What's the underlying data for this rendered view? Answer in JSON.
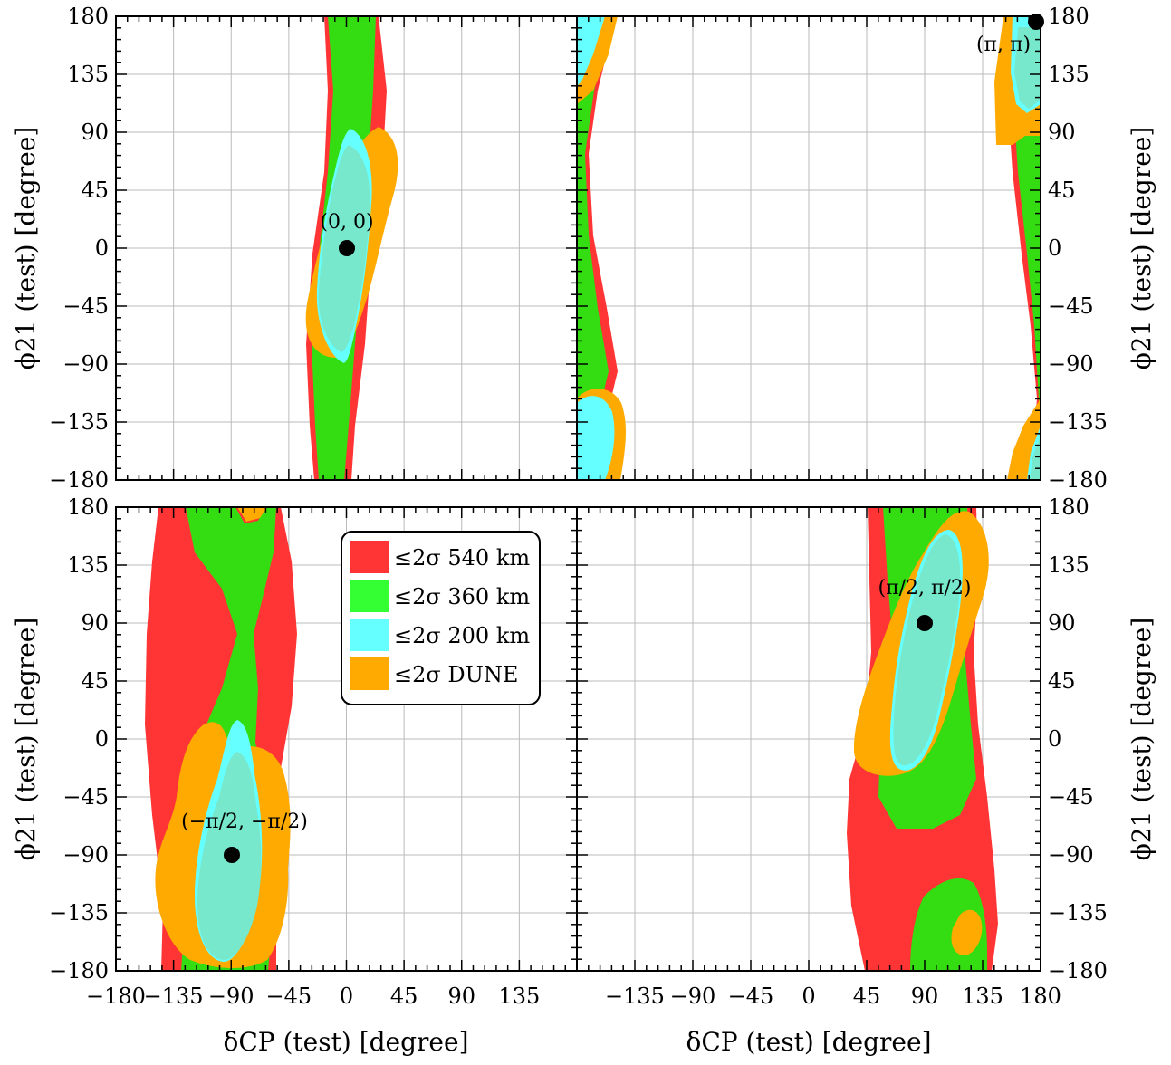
{
  "figure": {
    "x_axis_label": "δCP (test) [degree]",
    "y_axis_label": "ϕ21 (test) [degree]",
    "x_ticks_left": [
      "−180",
      "−135",
      "−90",
      "−45",
      "0",
      "45",
      "90",
      "135"
    ],
    "x_ticks_right": [
      "−135",
      "−90",
      "−45",
      "0",
      "45",
      "90",
      "135",
      "180"
    ],
    "y_ticks_left_top": [
      "180",
      "135",
      "90",
      "45",
      "0",
      "−45",
      "−90",
      "−135",
      "−180"
    ],
    "y_ticks_right_top": [
      "180",
      "135",
      "90",
      "45",
      "0",
      "−45",
      "−90",
      "−135",
      "−180"
    ],
    "y_ticks_left_bottom": [
      "180",
      "135",
      "90",
      "45",
      "0",
      "−45",
      "−90",
      "−135",
      "−180"
    ],
    "y_ticks_right_bottom": [
      "180",
      "135",
      "90",
      "45",
      "0",
      "−45",
      "−90",
      "−135",
      "−180"
    ]
  },
  "legend": [
    {
      "label": "≤2σ 540 km",
      "color": "#ff3535"
    },
    {
      "label": "≤2σ 360 km",
      "color": "#33dd11"
    },
    {
      "label": "≤2σ 200 km",
      "color": "#66ffff"
    },
    {
      "label": "≤2σ DUNE",
      "color": "#ffaa00"
    }
  ],
  "chart_data": [
    {
      "type": "contour",
      "panel": "top-left",
      "xlim": [
        -180,
        180
      ],
      "ylim": [
        -180,
        180
      ],
      "grid": true,
      "benchmark": {
        "label": "(0, 0)",
        "x": 0,
        "y": 0
      },
      "regions": {
        "540 km": [
          [
            -30,
            180
          ],
          [
            30,
            180
          ],
          [
            32,
            120
          ],
          [
            22,
            60
          ],
          [
            16,
            0
          ],
          [
            16,
            -60
          ],
          [
            8,
            -120
          ],
          [
            4,
            -180
          ],
          [
            -25,
            -180
          ],
          [
            -30,
            -120
          ],
          [
            -32,
            -60
          ],
          [
            -22,
            0
          ],
          [
            -18,
            60
          ],
          [
            -20,
            120
          ]
        ],
        "360 km": [
          [
            -26,
            180
          ],
          [
            26,
            180
          ],
          [
            24,
            120
          ],
          [
            18,
            60
          ],
          [
            12,
            0
          ],
          [
            10,
            -60
          ],
          [
            4,
            -120
          ],
          [
            0,
            -180
          ],
          [
            -22,
            -180
          ],
          [
            -24,
            -120
          ],
          [
            -26,
            -60
          ],
          [
            -20,
            0
          ],
          [
            -14,
            60
          ],
          [
            -14,
            120
          ]
        ],
        "DUNE": [
          [
            28,
            95
          ],
          [
            40,
            70
          ],
          [
            37,
            40
          ],
          [
            28,
            0
          ],
          [
            18,
            -45
          ],
          [
            5,
            -82
          ],
          [
            -15,
            -88
          ],
          [
            -32,
            -75
          ],
          [
            -34,
            -40
          ],
          [
            -24,
            0
          ],
          [
            -10,
            40
          ],
          [
            5,
            75
          ],
          [
            15,
            92
          ]
        ],
        "200 km": [
          [
            2,
            93
          ],
          [
            14,
            70
          ],
          [
            20,
            40
          ],
          [
            18,
            0
          ],
          [
            10,
            -45
          ],
          [
            -2,
            -90
          ],
          [
            -14,
            -75
          ],
          [
            -28,
            -40
          ],
          [
            -24,
            0
          ],
          [
            -14,
            40
          ],
          [
            -6,
            70
          ]
        ]
      }
    },
    {
      "type": "contour",
      "panel": "top-right",
      "xlim": [
        -180,
        180
      ],
      "ylim": [
        -180,
        180
      ],
      "grid": true,
      "benchmark": {
        "label": "(π, π)",
        "x": 180,
        "y": 180
      },
      "regions": {
        "540 km": [
          [
            -180,
            180
          ],
          [
            -155,
            180
          ],
          [
            -173,
            120
          ],
          [
            -170,
            60
          ],
          [
            -160,
            0
          ],
          [
            -150,
            -60
          ],
          [
            -145,
            -110
          ],
          [
            -160,
            -150
          ],
          [
            -180,
            -180
          ]
        ],
        "360 km": [
          [
            -180,
            180
          ],
          [
            -158,
            180
          ],
          [
            -175,
            120
          ],
          [
            -172,
            60
          ],
          [
            -163,
            0
          ],
          [
            -155,
            -60
          ],
          [
            -152,
            -110
          ],
          [
            -165,
            -150
          ],
          [
            -180,
            -170
          ]
        ],
        "DUNE": [
          [
            -180,
            180
          ],
          [
            -150,
            180
          ],
          [
            -162,
            120
          ],
          [
            -180,
            100
          ],
          [
            -180,
            -180
          ],
          [
            -157,
            -180
          ],
          [
            -145,
            -140
          ],
          [
            -152,
            -105
          ],
          [
            -172,
            -100
          ],
          [
            -180,
            -110
          ]
        ],
        "200 km": [
          [
            -180,
            180
          ],
          [
            -162,
            180
          ],
          [
            -175,
            130
          ],
          [
            -180,
            120
          ],
          [
            -180,
            -180
          ],
          [
            -165,
            -180
          ],
          [
            -155,
            -145
          ],
          [
            -160,
            -115
          ],
          [
            -180,
            -110
          ]
        ]
      },
      "regions_right_edge": {
        "540 km": [
          [
            180,
            180
          ],
          [
            155,
            180
          ],
          [
            150,
            120
          ],
          [
            155,
            60
          ],
          [
            160,
            0
          ],
          [
            165,
            -60
          ],
          [
            168,
            -120
          ],
          [
            175,
            -180
          ],
          [
            180,
            -180
          ]
        ],
        "DUNE": [
          [
            180,
            180
          ],
          [
            157,
            180
          ],
          [
            150,
            135
          ],
          [
            150,
            90
          ],
          [
            168,
            80
          ],
          [
            180,
            90
          ],
          [
            180,
            -180
          ],
          [
            158,
            -180
          ],
          [
            170,
            -140
          ],
          [
            180,
            -120
          ]
        ],
        "200 km": [
          [
            180,
            180
          ],
          [
            163,
            180
          ],
          [
            162,
            130
          ],
          [
            170,
            105
          ],
          [
            180,
            110
          ]
        ]
      }
    },
    {
      "type": "contour",
      "panel": "bottom-left",
      "xlim": [
        -180,
        180
      ],
      "ylim": [
        -180,
        180
      ],
      "grid": true,
      "benchmark": {
        "label": "(−π/2, −π/2)",
        "x": -90,
        "y": -90
      }
    },
    {
      "type": "contour",
      "panel": "bottom-right",
      "xlim": [
        -180,
        180
      ],
      "ylim": [
        -180,
        180
      ],
      "grid": true,
      "benchmark": {
        "label": "(π/2, π/2)",
        "x": 90,
        "y": 90
      }
    }
  ]
}
